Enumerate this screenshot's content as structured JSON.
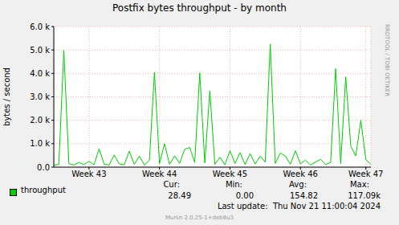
{
  "chart_data": {
    "type": "line",
    "title": "Postfix bytes throughput - by month",
    "y_label": "bytes / second",
    "x": [
      0,
      0.5,
      1,
      1.5,
      2,
      2.5,
      3,
      3.5,
      4,
      4.5,
      5,
      5.5,
      6,
      6.5,
      7,
      7.5,
      8,
      8.5,
      9,
      9.5,
      10,
      10.5,
      11,
      11.5,
      12,
      12.5,
      13,
      13.5,
      14,
      14.5,
      15,
      15.5,
      16,
      16.5,
      17,
      17.5,
      18,
      18.5,
      19,
      19.5,
      20,
      20.5,
      21,
      21.5,
      22,
      22.5,
      23,
      23.5,
      24,
      24.5,
      25,
      25.5,
      26,
      26.5,
      27,
      27.5,
      28,
      28.5,
      29,
      29.5,
      30,
      30.5,
      31,
      31.5
    ],
    "series": [
      {
        "name": "throughput",
        "color": "#00cc00",
        "values": [
          80,
          120,
          4980,
          150,
          90,
          200,
          110,
          250,
          100,
          780,
          130,
          90,
          520,
          140,
          100,
          680,
          120,
          470,
          90,
          300,
          4050,
          150,
          1000,
          120,
          480,
          160,
          760,
          840,
          200,
          4020,
          180,
          3250,
          120,
          420,
          100,
          700,
          150,
          620,
          110,
          580,
          130,
          470,
          210,
          5250,
          160,
          600,
          480,
          120,
          700,
          140,
          300,
          90,
          220,
          330,
          110,
          200,
          4200,
          150,
          3850,
          900,
          480,
          2000,
          320,
          120
        ],
        "stats": [
          {
            "label": "Cur:",
            "text": "28.49"
          },
          {
            "label": "Min:",
            "text": "0.00"
          },
          {
            "label": "Avg:",
            "text": "154.82"
          },
          {
            "label": "Max:",
            "text": "117.09k"
          }
        ]
      }
    ],
    "xlim": [
      0,
      31.5
    ],
    "xticks": [
      {
        "value": 3.5,
        "label": "Week 43"
      },
      {
        "value": 10.5,
        "label": "Week 44"
      },
      {
        "value": 17.5,
        "label": "Week 45"
      },
      {
        "value": 24.5,
        "label": "Week 46"
      },
      {
        "value": 31,
        "label": "Week 47"
      }
    ],
    "ylim": [
      0,
      6000
    ],
    "yticks": [
      {
        "value": 0,
        "label": "0.0"
      },
      {
        "value": 1000,
        "label": "1.0 k"
      },
      {
        "value": 2000,
        "label": "2.0 k"
      },
      {
        "value": 3000,
        "label": "3.0 k"
      },
      {
        "value": 4000,
        "label": "4.0 k"
      },
      {
        "value": 5000,
        "label": "5.0 k"
      },
      {
        "value": 6000,
        "label": "6.0 k"
      }
    ],
    "grid": true,
    "last_update": "Last update:  Thu Nov 21 11:00:04 2024",
    "footer": "Munin 2.0.25-1+deb8u3",
    "watermark": "RRDTOOL / TOBI OETIKER"
  }
}
